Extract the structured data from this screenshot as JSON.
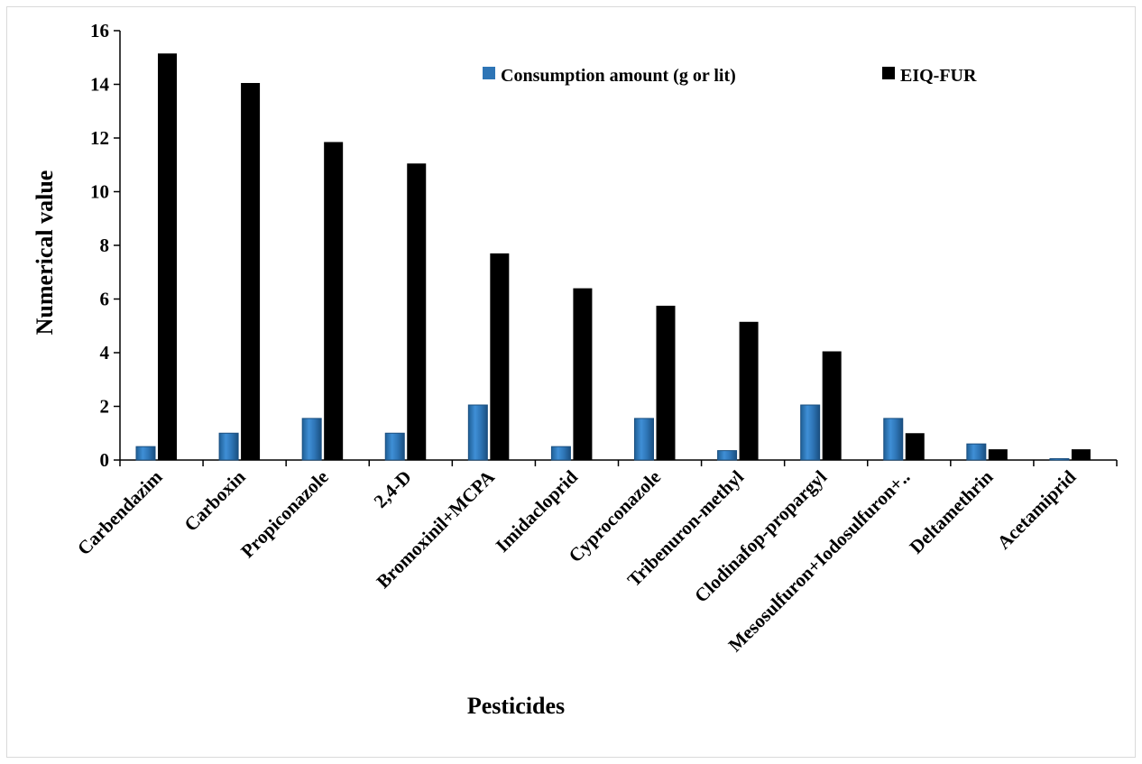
{
  "chart_data": {
    "type": "bar",
    "xlabel": "Pesticides",
    "ylabel": "Numerical  value",
    "ylim": [
      0,
      16
    ],
    "yticks": [
      0,
      2,
      4,
      6,
      8,
      10,
      12,
      14,
      16
    ],
    "grid": false,
    "legend_position": "top-right",
    "categories": [
      "Carbendazim",
      "Carboxin",
      "Propiconazole",
      "2,4-D",
      "Bromoxinil+MCPA",
      "Imidacloprid",
      "Cyproconazole",
      "Tribenuron-methyl",
      "Clodinafop-propargyl",
      "Mesosulfuron+Iodosulfuron+..",
      "Deltamethrin",
      "Acetamiprid"
    ],
    "series": [
      {
        "name": "Consumption amount (g or lit)",
        "color": "#2e75b6",
        "values": [
          0.5,
          1.0,
          1.55,
          1.0,
          2.05,
          0.5,
          1.55,
          0.35,
          2.05,
          1.55,
          0.6,
          0.05
        ]
      },
      {
        "name": "EIQ-FUR",
        "color": "#000000",
        "values": [
          15.15,
          14.05,
          11.85,
          11.05,
          7.7,
          6.4,
          5.75,
          5.15,
          4.05,
          1.0,
          0.4,
          0.4
        ]
      }
    ]
  }
}
